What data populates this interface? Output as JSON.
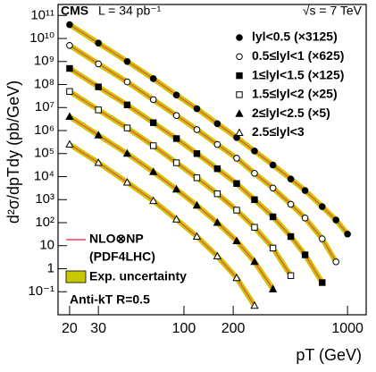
{
  "chart_data": {
    "type": "line",
    "header": {
      "experiment": "CMS",
      "lumi": "L = 34 pb⁻¹",
      "energy": "√s = 7 TeV"
    },
    "xlabel": "pT (GeV)",
    "ylabel": "d²σ/dpTdy (pb/GeV)",
    "xscale": "log",
    "yscale": "log",
    "xlim": [
      17,
      1300
    ],
    "ylim": [
      0.01,
      300000000000
    ],
    "xticks": [
      20,
      30,
      100,
      200,
      1000
    ],
    "yticks": [
      {
        "value": 0.1,
        "label": "10⁻¹"
      },
      1,
      10,
      {
        "value": 100,
        "label": "10²"
      },
      {
        "value": 1000,
        "label": "10³"
      },
      {
        "value": 10000,
        "label": "10⁴"
      },
      {
        "value": 100000,
        "label": "10⁵"
      },
      {
        "value": 1000000,
        "label": "10⁶"
      },
      {
        "value": 10000000,
        "label": "10⁷"
      },
      {
        "value": 100000000,
        "label": "10⁸"
      },
      {
        "value": 1000000000,
        "label": "10⁹"
      },
      {
        "value": 10000000000,
        "label": "10¹⁰"
      },
      {
        "value": 100000000000,
        "label": "10¹¹"
      }
    ],
    "theory_color": "#ff4060",
    "band_color": "#c8c800",
    "series": [
      {
        "name": "lyl<0.5 (×3125)",
        "marker": "circle",
        "color": "#000000",
        "x": [
          20,
          30,
          45,
          65,
          90,
          120,
          160,
          210,
          270,
          350,
          450,
          550,
          700,
          850,
          1000
        ],
        "values": [
          40000000000.0,
          6300000000.0,
          1000000000.0,
          180000000.0,
          35000000.0,
          8900000.0,
          2000000.0,
          500000.0,
          130000.0,
          32000.0,
          7900,
          2500,
          500,
          130,
          32
        ]
      },
      {
        "name": "0.5≤lyl<1 (×625)",
        "marker": "open-circle",
        "color": "#000000",
        "x": [
          20,
          30,
          45,
          65,
          90,
          120,
          160,
          210,
          270,
          350,
          450,
          550,
          700,
          850
        ],
        "values": [
          5000000000.0,
          790000000.0,
          130000000.0,
          22000000.0,
          4500000.0,
          1100000.0,
          250000.0,
          63000.0,
          14000.0,
          3200,
          630,
          160,
          20,
          2
        ]
      },
      {
        "name": "1≤lyl<1.5 (×125)",
        "marker": "square",
        "color": "#000000",
        "x": [
          20,
          30,
          45,
          65,
          90,
          120,
          160,
          210,
          270,
          350,
          450,
          550,
          700
        ],
        "values": [
          500000000.0,
          79000000.0,
          13000000.0,
          2200000.0,
          450000.0,
          100000.0,
          22000.0,
          5000,
          1000,
          180,
          25,
          4,
          0.25
        ]
      },
      {
        "name": "1.5≤lyl<2 (×25)",
        "marker": "open-square",
        "color": "#000000",
        "x": [
          20,
          30,
          45,
          65,
          90,
          120,
          160,
          210,
          270,
          350,
          450
        ],
        "values": [
          50000000.0,
          7900000.0,
          1300000.0,
          220000.0,
          40000.0,
          8900,
          1800,
          350,
          63,
          7.9,
          0.5
        ]
      },
      {
        "name": "2≤lyl<2.5 (×5)",
        "marker": "triangle",
        "color": "#000000",
        "x": [
          20,
          30,
          45,
          65,
          90,
          120,
          160,
          210,
          270,
          350
        ],
        "values": [
          4000000.0,
          630000.0,
          100000.0,
          16000.0,
          2800,
          560,
          100,
          16,
          2,
          0.13
        ]
      },
      {
        "name": "2.5≤lyl<3",
        "marker": "open-triangle",
        "color": "#000000",
        "x": [
          20,
          30,
          45,
          65,
          90,
          120,
          160,
          210,
          270
        ],
        "values": [
          250000.0,
          40000.0,
          5600,
          890,
          140,
          25,
          3.5,
          0.4,
          0.025
        ]
      }
    ],
    "legend_theory": [
      "NLO⊗NP",
      "(PDF4LHC)"
    ],
    "legend_band": "Exp. uncertainty",
    "annotation": "Anti-kT R=0.5"
  }
}
